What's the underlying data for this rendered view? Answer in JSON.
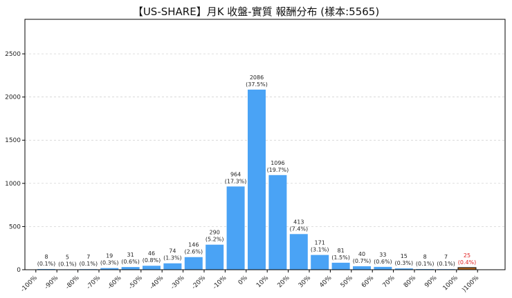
{
  "chart_data": {
    "type": "bar",
    "title": "【US-SHARE】月K 收盤-實質 報酬分布 (樣本:5565)",
    "xlabel": "",
    "ylabel": "",
    "ylim": [
      0,
      2900
    ],
    "yticks": [
      0,
      500,
      1000,
      1500,
      2000,
      2500
    ],
    "grid": "horizontal-dashed",
    "xtick_labels": [
      "-100%",
      "-90%",
      "-80%",
      "-70%",
      "-60%",
      "-50%",
      "-40%",
      "-30%",
      "-20%",
      "-10%",
      "0%",
      "10%",
      "20%",
      "30%",
      "40%",
      "50%",
      "60%",
      "70%",
      "80%",
      "90%",
      "100%",
      ")100%"
    ],
    "bars": [
      {
        "value": 8,
        "count": "8",
        "pct": "(0.1%)"
      },
      {
        "value": 5,
        "count": "5",
        "pct": "(0.1%)"
      },
      {
        "value": 7,
        "count": "7",
        "pct": "(0.1%)"
      },
      {
        "value": 19,
        "count": "19",
        "pct": "(0.3%)"
      },
      {
        "value": 31,
        "count": "31",
        "pct": "(0.6%)"
      },
      {
        "value": 46,
        "count": "46",
        "pct": "(0.8%)"
      },
      {
        "value": 74,
        "count": "74",
        "pct": "(1.3%)"
      },
      {
        "value": 146,
        "count": "146",
        "pct": "(2.6%)"
      },
      {
        "value": 290,
        "count": "290",
        "pct": "(5.2%)"
      },
      {
        "value": 964,
        "count": "964",
        "pct": "(17.3%)"
      },
      {
        "value": 2086,
        "count": "2086",
        "pct": "(37.5%)"
      },
      {
        "value": 1096,
        "count": "1096",
        "pct": "(19.7%)"
      },
      {
        "value": 413,
        "count": "413",
        "pct": "(7.4%)"
      },
      {
        "value": 171,
        "count": "171",
        "pct": "(3.1%)"
      },
      {
        "value": 81,
        "count": "81",
        "pct": "(1.5%)"
      },
      {
        "value": 40,
        "count": "40",
        "pct": "(0.7%)"
      },
      {
        "value": 33,
        "count": "33",
        "pct": "(0.6%)"
      },
      {
        "value": 15,
        "count": "15",
        "pct": "(0.3%)"
      },
      {
        "value": 8,
        "count": "8",
        "pct": "(0.1%)"
      },
      {
        "value": 7,
        "count": "7",
        "pct": "(0.1%)"
      },
      {
        "value": 25,
        "count": "25",
        "pct": "(0.4%)",
        "highlight": true
      }
    ],
    "colors": {
      "bar": "#4aa3f5",
      "highlight_bar": "#b5651d",
      "highlight_edge": "#111111",
      "highlight_label": "#e02020",
      "grid": "#cccccc",
      "axis": "#000000"
    }
  }
}
